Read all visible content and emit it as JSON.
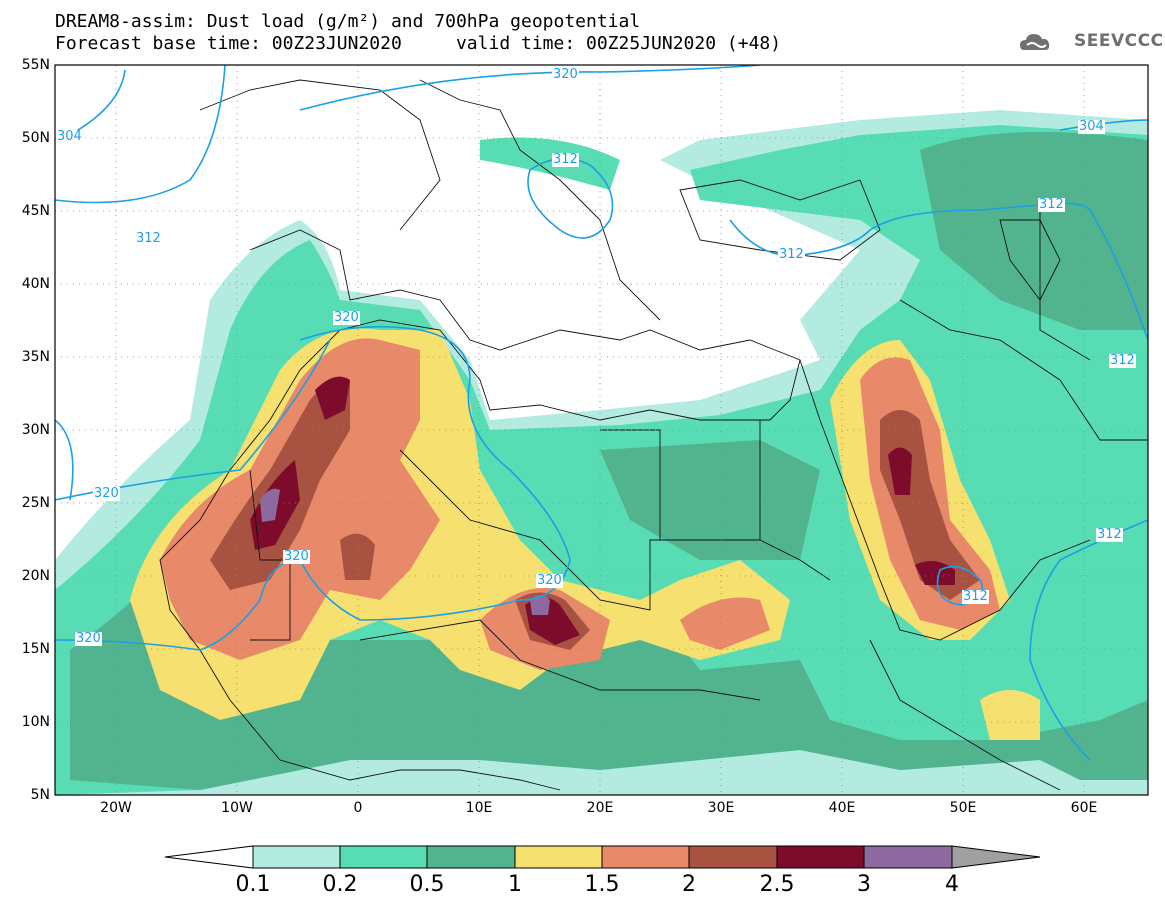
{
  "title": {
    "line1": "DREAM8-assim: Dust load (g/m²) and 700hPa geopotential",
    "line2": "Forecast base time: 00Z23JUN2020     valid time: 00Z25JUN2020 (+48)"
  },
  "logo": {
    "text": "SEEVCCC",
    "icon": "cloud-icon"
  },
  "latitudes": [
    "55N",
    "50N",
    "45N",
    "40N",
    "35N",
    "30N",
    "25N",
    "20N",
    "15N",
    "10N",
    "5N"
  ],
  "longitudes": [
    "20W",
    "10W",
    "0",
    "10E",
    "20E",
    "30E",
    "40E",
    "50E",
    "60E"
  ],
  "colorbar": {
    "labels": [
      "0.1",
      "0.2",
      "0.5",
      "1",
      "1.5",
      "2",
      "2.5",
      "3",
      "4"
    ],
    "colors": [
      "#ffffff",
      "#b4ebe1",
      "#58dcb4",
      "#52b48e",
      "#f5e070",
      "#e8896a",
      "#a85242",
      "#7d0c2c",
      "#8c6aa0",
      "#a0a0a0"
    ]
  },
  "isolines": [
    {
      "label": "320",
      "name": "isoline-label-320-north"
    },
    {
      "label": "304",
      "name": "isoline-label-304-west"
    },
    {
      "label": "312",
      "name": "isoline-label-312-atlantic"
    },
    {
      "label": "312",
      "name": "isoline-label-312-balkan"
    },
    {
      "label": "304",
      "name": "isoline-label-304-east"
    },
    {
      "label": "312",
      "name": "isoline-label-312-caspian"
    },
    {
      "label": "312",
      "name": "isoline-label-312-blacksea"
    },
    {
      "label": "320",
      "name": "isoline-label-320-morocco"
    },
    {
      "label": "312",
      "name": "isoline-label-312-iran"
    },
    {
      "label": "320",
      "name": "isoline-label-320-sahara"
    },
    {
      "label": "312",
      "name": "isoline-label-312-arabian"
    },
    {
      "label": "320",
      "name": "isoline-label-320-mali"
    },
    {
      "label": "320",
      "name": "isoline-label-320-chad"
    },
    {
      "label": "312",
      "name": "isoline-label-312-yemen"
    },
    {
      "label": "320",
      "name": "isoline-label-320-senegal"
    }
  ]
}
